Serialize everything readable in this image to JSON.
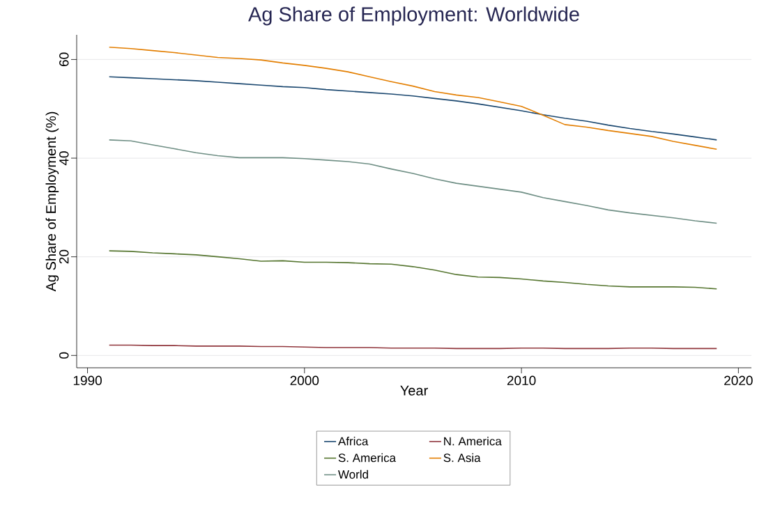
{
  "chart_data": {
    "type": "line",
    "title": "Ag Share of Employment: Worldwide",
    "xlabel": "Year",
    "ylabel": "Ag Share of Employment (%)",
    "x": [
      1991,
      1992,
      1993,
      1994,
      1995,
      1996,
      1997,
      1998,
      1999,
      2000,
      2001,
      2002,
      2003,
      2004,
      2005,
      2006,
      2007,
      2008,
      2009,
      2010,
      2011,
      2012,
      2013,
      2014,
      2015,
      2016,
      2017,
      2018,
      2019
    ],
    "series": [
      {
        "name": "Africa",
        "color": "#1a476f",
        "values": [
          56.5,
          56.3,
          56.1,
          55.9,
          55.7,
          55.4,
          55.1,
          54.8,
          54.5,
          54.3,
          53.9,
          53.6,
          53.3,
          53.0,
          52.6,
          52.1,
          51.6,
          51.0,
          50.3,
          49.6,
          48.8,
          48.1,
          47.5,
          46.7,
          46.0,
          45.4,
          44.9,
          44.3,
          43.7
        ]
      },
      {
        "name": "N. America",
        "color": "#90353b",
        "values": [
          2.1,
          2.1,
          2.0,
          2.0,
          1.9,
          1.9,
          1.9,
          1.8,
          1.8,
          1.7,
          1.6,
          1.6,
          1.6,
          1.5,
          1.5,
          1.5,
          1.4,
          1.4,
          1.4,
          1.5,
          1.5,
          1.4,
          1.4,
          1.4,
          1.5,
          1.5,
          1.4,
          1.4,
          1.4
        ]
      },
      {
        "name": "S. America",
        "color": "#55752f",
        "values": [
          21.2,
          21.1,
          20.8,
          20.6,
          20.4,
          20.0,
          19.6,
          19.1,
          19.2,
          18.9,
          18.9,
          18.8,
          18.6,
          18.5,
          18.0,
          17.3,
          16.4,
          15.9,
          15.8,
          15.5,
          15.1,
          14.8,
          14.4,
          14.1,
          13.9,
          13.9,
          13.9,
          13.8,
          13.5
        ]
      },
      {
        "name": "S. Asia",
        "color": "#e37e00",
        "values": [
          62.5,
          62.2,
          61.8,
          61.4,
          60.9,
          60.4,
          60.2,
          59.9,
          59.3,
          58.8,
          58.2,
          57.5,
          56.5,
          55.5,
          54.6,
          53.5,
          52.8,
          52.3,
          51.4,
          50.5,
          48.7,
          46.8,
          46.3,
          45.6,
          45.0,
          44.4,
          43.4,
          42.6,
          41.8
        ]
      },
      {
        "name": "World",
        "color": "#6e8e84",
        "values": [
          43.7,
          43.5,
          42.7,
          41.9,
          41.1,
          40.5,
          40.1,
          40.1,
          40.1,
          39.9,
          39.6,
          39.3,
          38.8,
          37.8,
          36.9,
          35.8,
          34.9,
          34.3,
          33.7,
          33.1,
          32.0,
          31.2,
          30.4,
          29.5,
          28.9,
          28.4,
          27.9,
          27.3,
          26.8
        ]
      }
    ],
    "xlim": [
      1989.5,
      2020.6
    ],
    "ylim": [
      -2.5,
      65
    ],
    "xticks": [
      1990,
      2000,
      2010,
      2020
    ],
    "yticks": [
      0,
      20,
      40,
      60
    ],
    "grid": "y",
    "legend": "bottom",
    "marker": "none",
    "line_style": "solid"
  }
}
